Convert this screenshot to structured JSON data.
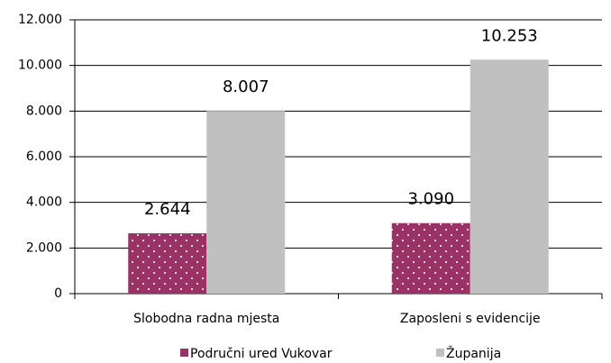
{
  "chart_data": {
    "type": "bar",
    "categories": [
      "Slobodna radna mjesta",
      "Zaposleni s evidencije"
    ],
    "series": [
      {
        "name": "Područni ured Vukovar",
        "color": "#993366",
        "values": [
          2644,
          3090
        ],
        "value_labels": [
          "2.644",
          "3.090"
        ]
      },
      {
        "name": "Županija",
        "color": "#c0c0c0",
        "values": [
          8007,
          10253
        ],
        "value_labels": [
          "8.007",
          "10.253"
        ]
      }
    ],
    "ylim": [
      0,
      12000
    ],
    "yticks": [
      0,
      {
        "value": 2000,
        "label": "2.000"
      },
      {
        "value": 4000,
        "label": "4.000"
      },
      {
        "value": 6000,
        "label": "6.000"
      },
      {
        "value": 8000,
        "label": "8.000"
      },
      {
        "value": 10000,
        "label": "10.000"
      },
      {
        "value": 12000,
        "label": "12.000"
      }
    ],
    "grid": true,
    "legend": "bottom"
  }
}
